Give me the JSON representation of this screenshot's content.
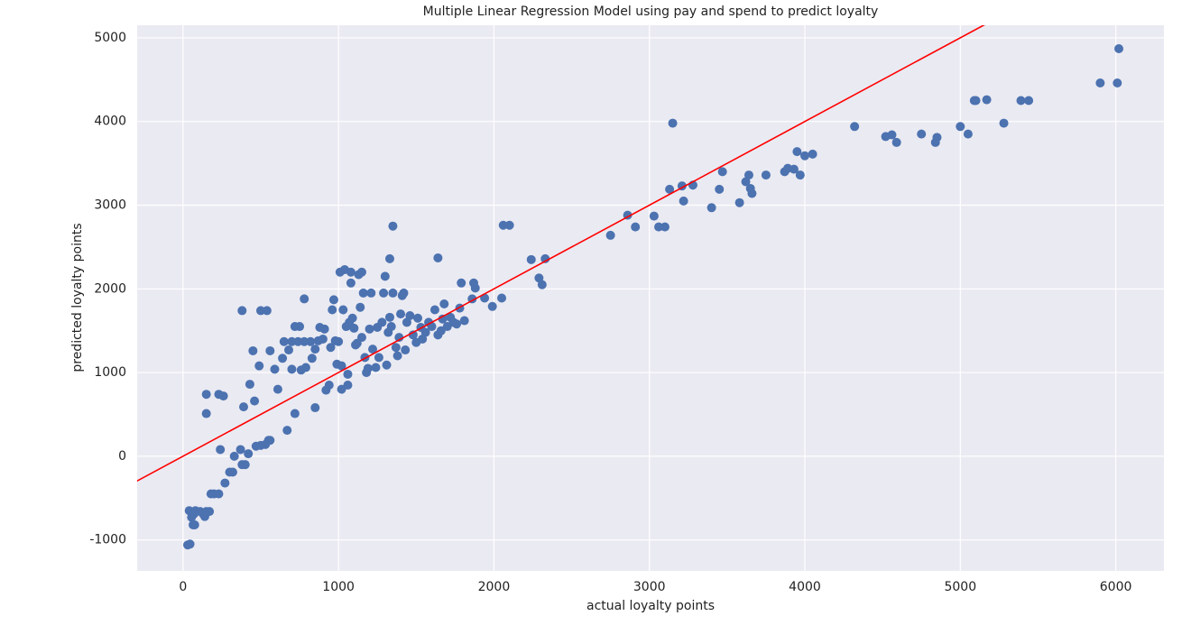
{
  "chart_data": {
    "type": "scatter",
    "title": "Multiple Linear Regression Model using pay and spend to predict loyalty",
    "xlabel": "actual loyalty points",
    "ylabel": "predicted loyalty points",
    "color": "#4c72b0",
    "diagonal": true,
    "diagonal_color": "#ff0000",
    "grid": true,
    "xlim": [
      -295,
      6310
    ],
    "ylim": [
      -1370,
      5150
    ],
    "xticks": [
      0,
      1000,
      2000,
      3000,
      4000,
      5000,
      6000
    ],
    "yticks": [
      -1000,
      0,
      1000,
      2000,
      3000,
      4000,
      5000
    ],
    "x": [
      30,
      45,
      40,
      55,
      65,
      75,
      80,
      70,
      110,
      130,
      140,
      150,
      170,
      180,
      200,
      230,
      270,
      300,
      320,
      330,
      370,
      380,
      400,
      420,
      470,
      500,
      530,
      550,
      560,
      670,
      720,
      150,
      150,
      230,
      260,
      240,
      380,
      500,
      540,
      390,
      450,
      430,
      460,
      490,
      560,
      590,
      610,
      640,
      650,
      680,
      700,
      700,
      720,
      740,
      750,
      760,
      780,
      780,
      790,
      820,
      830,
      850,
      850,
      870,
      880,
      900,
      910,
      920,
      940,
      950,
      960,
      970,
      980,
      990,
      1000,
      1010,
      1020,
      1020,
      1030,
      1040,
      1050,
      1060,
      1060,
      1070,
      1080,
      1080,
      1090,
      1100,
      1110,
      1120,
      1130,
      1140,
      1150,
      1150,
      1160,
      1170,
      1180,
      1190,
      1200,
      1210,
      1220,
      1240,
      1250,
      1260,
      1280,
      1290,
      1300,
      1310,
      1320,
      1330,
      1330,
      1340,
      1350,
      1350,
      1370,
      1380,
      1390,
      1400,
      1410,
      1420,
      1430,
      1440,
      1460,
      1480,
      1500,
      1510,
      1530,
      1540,
      1560,
      1580,
      1600,
      1620,
      1640,
      1640,
      1660,
      1670,
      1680,
      1700,
      1720,
      1740,
      1760,
      1780,
      1790,
      1810,
      1860,
      1870,
      1880,
      1940,
      1990,
      2050,
      2060,
      2100,
      2240,
      2290,
      2310,
      2330,
      2750,
      2860,
      2910,
      3030,
      3060,
      3100,
      3130,
      3150,
      3210,
      3220,
      3280,
      3400,
      3450,
      3470,
      3580,
      3620,
      3640,
      3650,
      3660,
      3750,
      3870,
      3890,
      3930,
      3950,
      3970,
      4000,
      4050,
      4320,
      4520,
      4560,
      4590,
      4750,
      4840,
      4850,
      5000,
      5050,
      5090,
      5100,
      5170,
      5280,
      5390,
      5440,
      5900,
      6010,
      6020
    ],
    "values": [
      -1060,
      -1050,
      -650,
      -730,
      -820,
      -820,
      -650,
      -690,
      -660,
      -690,
      -720,
      -660,
      -660,
      -450,
      -450,
      -450,
      -320,
      -190,
      -190,
      0,
      80,
      -100,
      -100,
      30,
      120,
      130,
      140,
      190,
      190,
      310,
      510,
      740,
      510,
      740,
      720,
      80,
      1740,
      1740,
      1740,
      590,
      1260,
      860,
      660,
      1080,
      1260,
      1040,
      800,
      1170,
      1370,
      1270,
      1040,
      1370,
      1550,
      1370,
      1550,
      1030,
      1370,
      1880,
      1060,
      1370,
      1170,
      1280,
      580,
      1380,
      1540,
      1400,
      1520,
      790,
      850,
      1300,
      1750,
      1870,
      1380,
      1100,
      1370,
      2200,
      1080,
      800,
      1750,
      2230,
      1550,
      980,
      850,
      1600,
      2070,
      2200,
      1650,
      1530,
      1330,
      1350,
      2170,
      1780,
      1420,
      2200,
      1950,
      1180,
      1000,
      1050,
      1520,
      1950,
      1280,
      1060,
      1540,
      1180,
      1600,
      1950,
      2150,
      1090,
      1480,
      1660,
      2360,
      1550,
      1950,
      2750,
      1300,
      1200,
      1420,
      1700,
      1920,
      1950,
      1270,
      1600,
      1680,
      1450,
      1360,
      1650,
      1540,
      1400,
      1480,
      1600,
      1550,
      1750,
      1450,
      2370,
      1500,
      1640,
      1820,
      1550,
      1660,
      1600,
      1580,
      1770,
      2070,
      1620,
      1880,
      2070,
      2010,
      1890,
      1790,
      1890,
      2760,
      2760,
      2350,
      2130,
      2050,
      2360,
      2640,
      2880,
      2740,
      2870,
      2740,
      2740,
      3190,
      3980,
      3230,
      3050,
      3240,
      2970,
      3190,
      3400,
      3030,
      3280,
      3360,
      3200,
      3140,
      3360,
      3400,
      3440,
      3430,
      3640,
      3360,
      3590,
      3610,
      3940,
      3820,
      3840,
      3750,
      3850,
      3750,
      3810,
      3940,
      3850,
      4250,
      4250,
      4260,
      3980,
      4250,
      4250,
      4460,
      4460,
      4870
    ]
  }
}
